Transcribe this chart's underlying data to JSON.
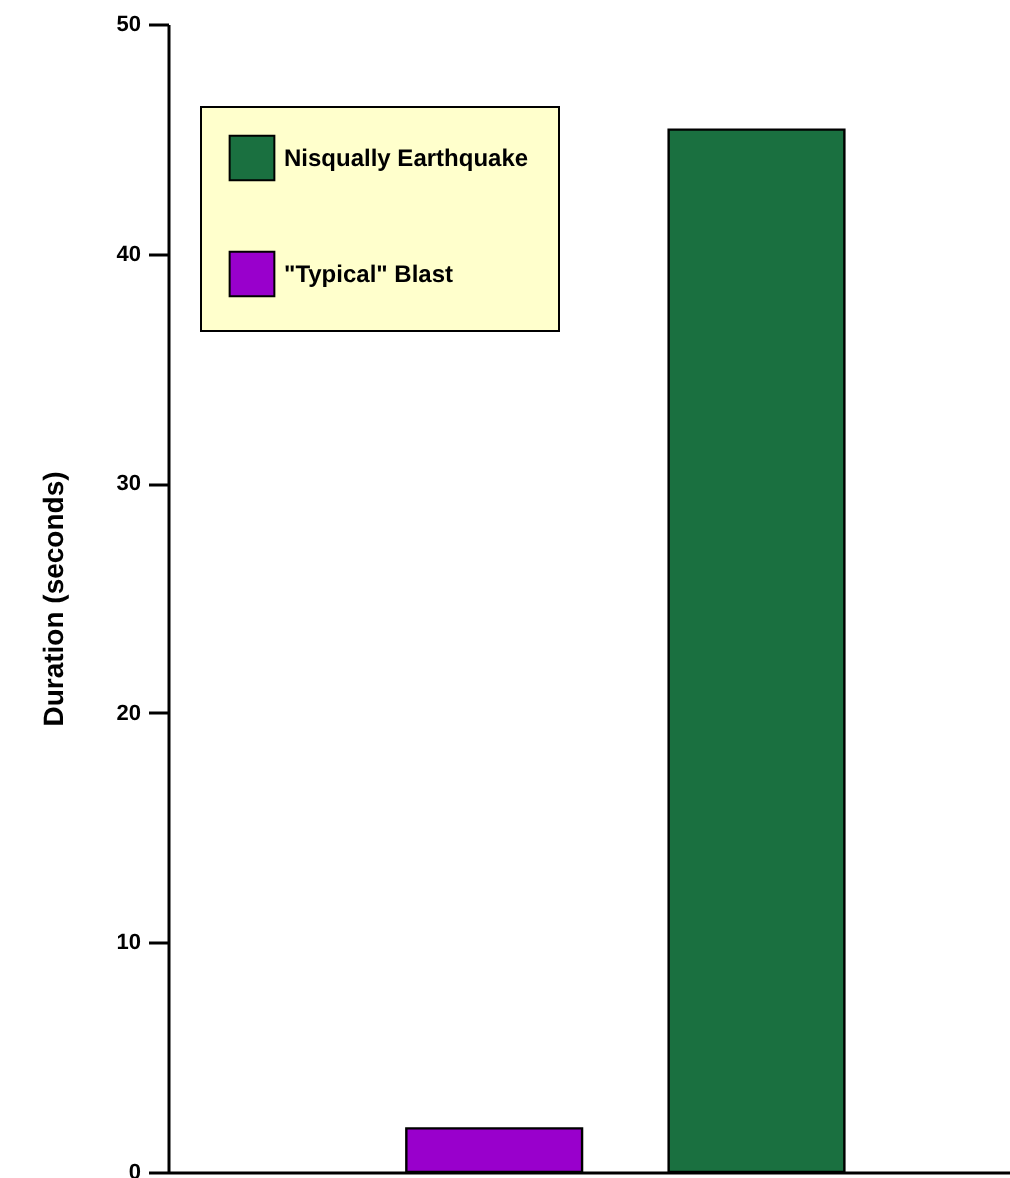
{
  "chart_data": {
    "type": "bar",
    "ylabel": "Duration (seconds)",
    "categories": [
      null,
      null
    ],
    "series": [
      {
        "name": "Nisqually Earthquake",
        "color": "#1a7040",
        "values": [
          null,
          45.4
        ]
      },
      {
        "name": "\"Typical\" Blast",
        "color": "#9900cc",
        "values": [
          1.9,
          null
        ]
      }
    ],
    "ylim": [
      0,
      50
    ],
    "yticks": [
      0,
      10,
      20,
      30,
      40,
      50
    ],
    "grid": false,
    "legend": "top left",
    "tick_labels": "y"
  }
}
